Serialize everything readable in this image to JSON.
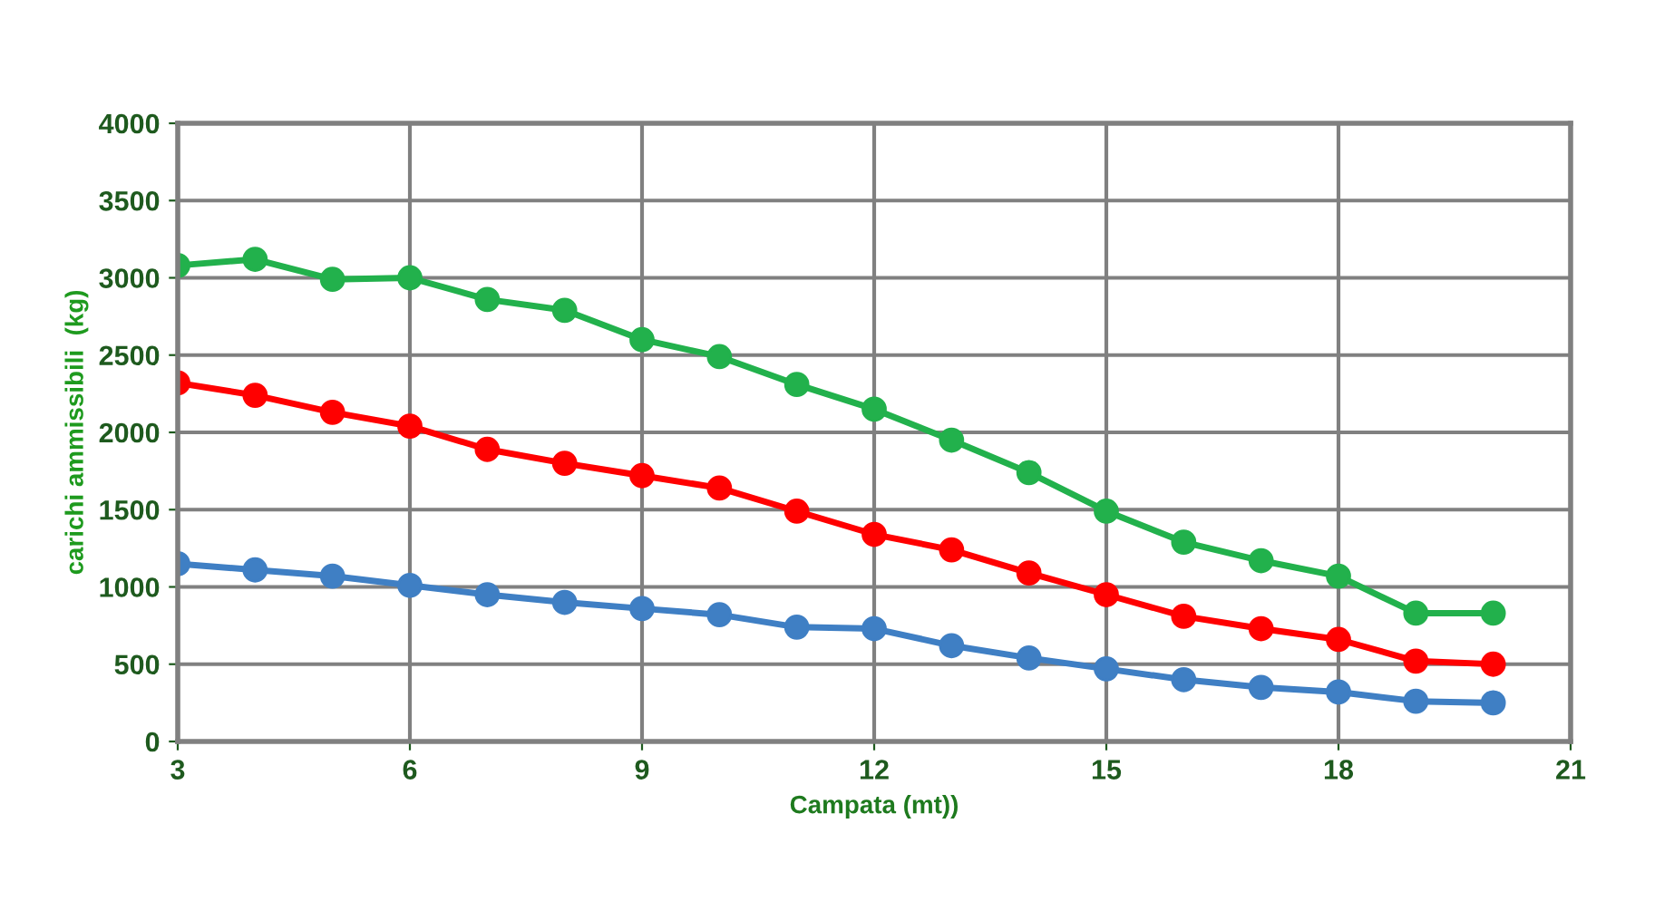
{
  "chart_data": {
    "type": "line",
    "xlabel": "Campata (mt))",
    "ylabel": "carichi ammissibili  (kg)",
    "x": [
      3,
      4,
      5,
      6,
      7,
      8,
      9,
      10,
      11,
      12,
      13,
      14,
      15,
      16,
      17,
      18,
      19,
      20
    ],
    "series": [
      {
        "color": "#22b14c",
        "values": [
          3080,
          3120,
          2990,
          3000,
          2860,
          2790,
          2600,
          2490,
          2310,
          2150,
          1950,
          1740,
          1490,
          1290,
          1170,
          1070,
          830,
          830
        ]
      },
      {
        "color": "#ff0000",
        "values": [
          2320,
          2240,
          2130,
          2040,
          1890,
          1800,
          1720,
          1640,
          1490,
          1340,
          1240,
          1090,
          950,
          810,
          730,
          660,
          520,
          500
        ]
      },
      {
        "color": "#3f7fc4",
        "values": [
          1150,
          1110,
          1070,
          1010,
          950,
          900,
          860,
          820,
          740,
          730,
          620,
          540,
          470,
          400,
          350,
          320,
          260,
          250
        ]
      }
    ],
    "xlim": [
      3,
      21
    ],
    "xticks": [
      3,
      6,
      9,
      12,
      15,
      18,
      21
    ],
    "ylim": [
      0,
      4000
    ],
    "yticks": [
      0,
      500,
      1000,
      1500,
      2000,
      2500,
      3000,
      3500,
      4000
    ],
    "grid": true,
    "marker": "circle",
    "line_style": "solid",
    "legend": false
  }
}
